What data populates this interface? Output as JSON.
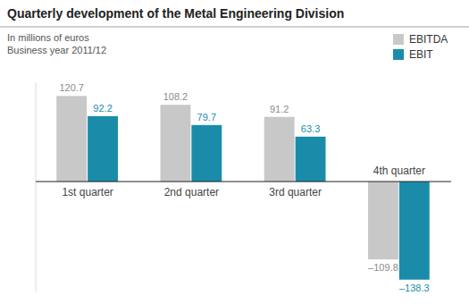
{
  "chart_data": {
    "type": "bar",
    "title": "Quarterly development of the Metal Engineering Division",
    "subtitle": [
      "In millions of euros",
      "Business year 2011/12"
    ],
    "categories": [
      "1st quarter",
      "2nd quarter",
      "3rd quarter",
      "4th quarter"
    ],
    "series": [
      {
        "name": "EBITDA",
        "color": "#c8c8c8",
        "values": [
          120.7,
          108.2,
          91.2,
          -109.8
        ],
        "value_labels": [
          "120.7",
          "108.2",
          "91.2",
          "–109.8"
        ]
      },
      {
        "name": "EBIT",
        "color": "#1a8caa",
        "values": [
          92.2,
          79.7,
          63.3,
          -138.3
        ],
        "value_labels": [
          "92.2",
          "79.7",
          "63.3",
          "–138.3"
        ]
      }
    ],
    "ylim": [
      -155,
      140
    ],
    "grid": false,
    "legend": "upper right",
    "data_labels": true,
    "tick_labels": "x"
  }
}
